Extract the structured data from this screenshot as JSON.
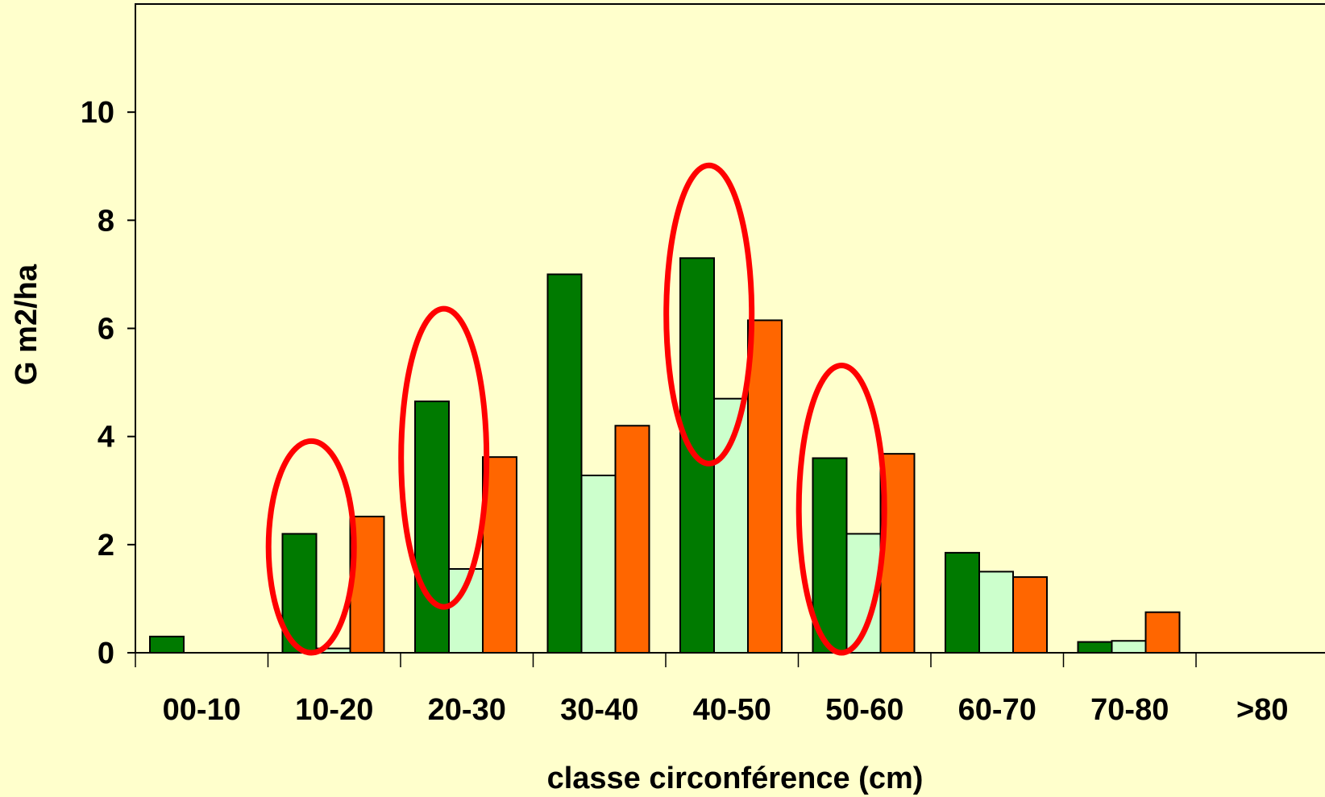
{
  "colors": {
    "background": "#FFFFCC",
    "plot_area": "#FFFFCC",
    "series": [
      "#007A00",
      "#CCFFCC",
      "#FF6600"
    ],
    "highlight": "#FF0000",
    "bar_stroke": "#000000"
  },
  "chart_data": {
    "type": "bar",
    "title": "",
    "xlabel": "classe circonférence (cm)",
    "ylabel": "G m2/ha",
    "ylim": [
      0,
      12
    ],
    "yticks": [
      0,
      2,
      4,
      6,
      8,
      10
    ],
    "grid": false,
    "legend": "none",
    "categories": [
      "00-10",
      "10-20",
      "20-30",
      "30-40",
      "40-50",
      "50-60",
      "60-70",
      "70-80",
      ">80"
    ],
    "series": [
      {
        "values": [
          0.3,
          2.2,
          4.65,
          7.0,
          7.3,
          3.6,
          1.85,
          0.2,
          0
        ]
      },
      {
        "values": [
          0,
          0.08,
          1.55,
          3.28,
          4.7,
          2.2,
          1.5,
          0.22,
          0
        ]
      },
      {
        "values": [
          0,
          2.52,
          3.62,
          4.2,
          6.15,
          3.68,
          1.4,
          0.75,
          0
        ]
      }
    ],
    "highlighted_categories": [
      "10-20",
      "20-30",
      "40-50",
      "50-60"
    ]
  }
}
